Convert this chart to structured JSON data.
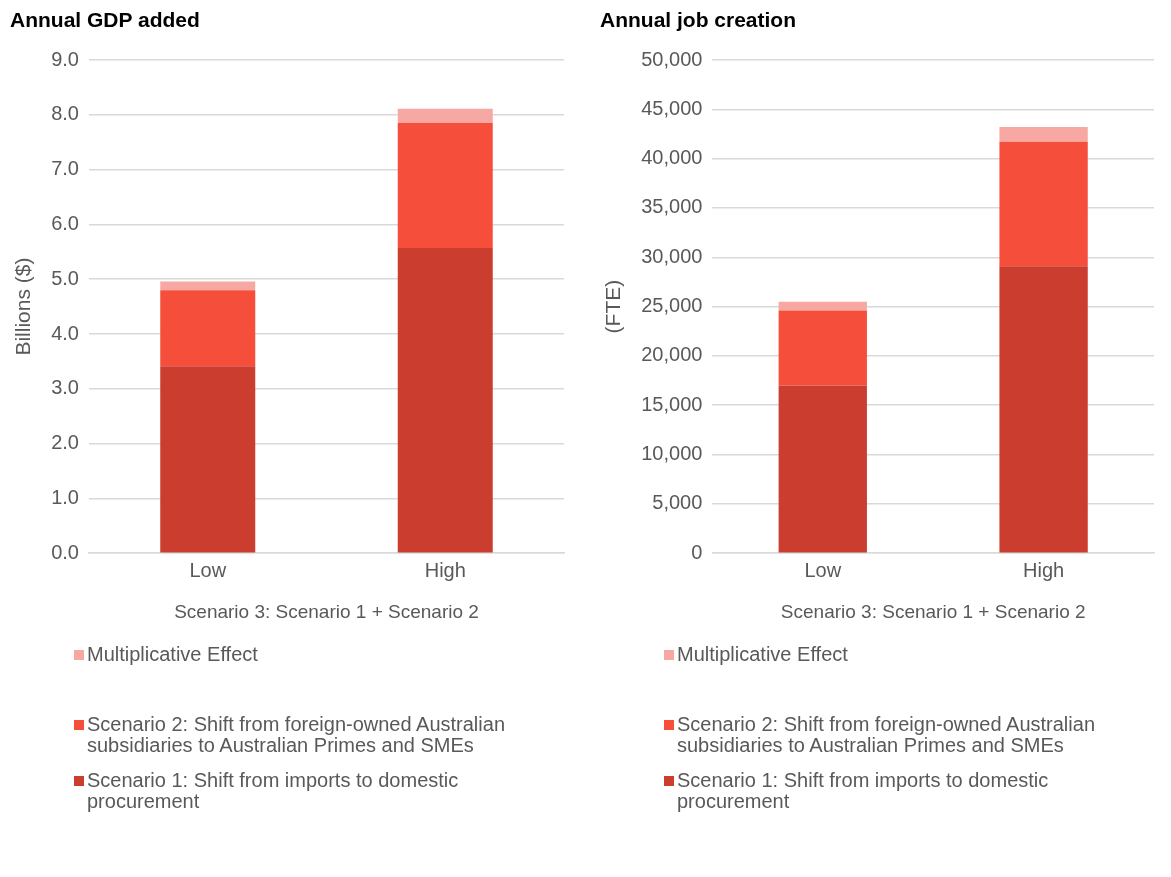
{
  "chart_data": [
    {
      "type": "bar",
      "title": "Annual GDP added",
      "ylabel": "Billions ($)",
      "xlabel": "Scenario 3: Scenario 1 + Scenario 2",
      "categories": [
        "Low",
        "High"
      ],
      "stacked": true,
      "grid": "y",
      "legend": "bottom",
      "ylim": [
        0,
        9
      ],
      "yticks": [
        {
          "value": 0,
          "label": "0.0"
        },
        {
          "value": 1,
          "label": "1.0"
        },
        {
          "value": 2,
          "label": "2.0"
        },
        {
          "value": 3,
          "label": "3.0"
        },
        {
          "value": 4,
          "label": "4.0"
        },
        {
          "value": 5,
          "label": "5.0"
        },
        {
          "value": 6,
          "label": "6.0"
        },
        {
          "value": 7,
          "label": "7.0"
        },
        {
          "value": 8,
          "label": "8.0"
        },
        {
          "value": 9,
          "label": "9.0"
        }
      ],
      "series": [
        {
          "name": "Scenario 1: Shift from imports to domestic procurement",
          "color": "#cb3d2f",
          "values": [
            3.41,
            5.57
          ]
        },
        {
          "name": "Scenario 2: Shift from foreign-owned Australian subsidiaries to Australian Primes and SMEs",
          "color": "#f54e3a",
          "values": [
            1.39,
            2.28
          ]
        },
        {
          "name": "Multiplicative Effect",
          "color": "#f7a8a2",
          "values": [
            0.16,
            0.26
          ]
        }
      ]
    },
    {
      "type": "bar",
      "title": "Annual job creation",
      "ylabel": "(FTE)",
      "xlabel": "Scenario 3: Scenario 1 + Scenario 2",
      "categories": [
        "Low",
        "High"
      ],
      "stacked": true,
      "grid": "y",
      "legend": "bottom",
      "ylim": [
        0,
        50000
      ],
      "yticks": [
        0,
        {
          "value": 5000,
          "label": "5,000"
        },
        {
          "value": 10000,
          "label": "10,000"
        },
        {
          "value": 15000,
          "label": "15,000"
        },
        {
          "value": 20000,
          "label": "20,000"
        },
        {
          "value": 25000,
          "label": "25,000"
        },
        {
          "value": 30000,
          "label": "30,000"
        },
        {
          "value": 35000,
          "label": "35,000"
        },
        {
          "value": 40000,
          "label": "40,000"
        },
        {
          "value": 45000,
          "label": "45,000"
        },
        {
          "value": 50000,
          "label": "50,000"
        }
      ],
      "series": [
        {
          "name": "Scenario 1: Shift from imports to domestic procurement",
          "color": "#cb3d2f",
          "values": [
            17000,
            29100
          ]
        },
        {
          "name": "Scenario 2: Shift from foreign-owned Australian subsidiaries to Australian Primes and SMEs",
          "color": "#f54e3a",
          "values": [
            7600,
            12600
          ]
        },
        {
          "name": "Multiplicative Effect",
          "color": "#f7a8a2",
          "values": [
            900,
            1500
          ]
        }
      ]
    }
  ]
}
